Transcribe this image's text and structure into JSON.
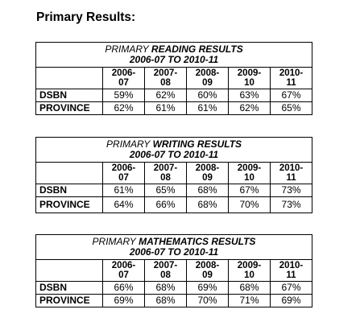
{
  "heading": "Primary Results:",
  "tables": [
    {
      "title_line1_prefix": "PRIMARY",
      "title_line1": " READING  RESULTS",
      "title_line2": "2006-07  TO  2010-11",
      "years": [
        [
          "2006-",
          "07"
        ],
        [
          "2007-",
          "08"
        ],
        [
          "2008-",
          "09"
        ],
        [
          "2009-",
          "10"
        ],
        [
          "2010-",
          "11"
        ]
      ],
      "rows": [
        {
          "label": "DSBN",
          "values": [
            "59%",
            "62%",
            "60%",
            "63%",
            "67%"
          ]
        },
        {
          "label": "PROVINCE",
          "values": [
            "62%",
            "61%",
            "61%",
            "62%",
            "65%"
          ]
        }
      ]
    },
    {
      "title_line1_prefix": "PRIMARY",
      "title_line1": " WRITING  RESULTS",
      "title_line2": "2006-07  TO  2010-11",
      "years": [
        [
          "2006-",
          "07"
        ],
        [
          "2007-",
          "08"
        ],
        [
          "2008-",
          "09"
        ],
        [
          "2009-",
          "10"
        ],
        [
          "2010-",
          "11"
        ]
      ],
      "rows": [
        {
          "label": "DSBN",
          "values": [
            "61%",
            "65%",
            "68%",
            "67%",
            "73%"
          ]
        },
        {
          "label": "PROVINCE",
          "values": [
            "64%",
            "66%",
            "68%",
            "70%",
            "73%"
          ]
        }
      ]
    },
    {
      "title_line1_prefix": "PRIMARY",
      "title_line1": " MATHEMATICS  RESULTS",
      "title_line2": "2006-07  TO  2010-11",
      "years": [
        [
          "2006-",
          "07"
        ],
        [
          "2007-",
          "08"
        ],
        [
          "2008-",
          "09"
        ],
        [
          "2009-",
          "10"
        ],
        [
          "2010-",
          "11"
        ]
      ],
      "rows": [
        {
          "label": "DSBN",
          "values": [
            "66%",
            "68%",
            "69%",
            "68%",
            "67%"
          ]
        },
        {
          "label": "PROVINCE",
          "values": [
            "69%",
            "68%",
            "70%",
            "71%",
            "69%"
          ]
        }
      ]
    }
  ]
}
